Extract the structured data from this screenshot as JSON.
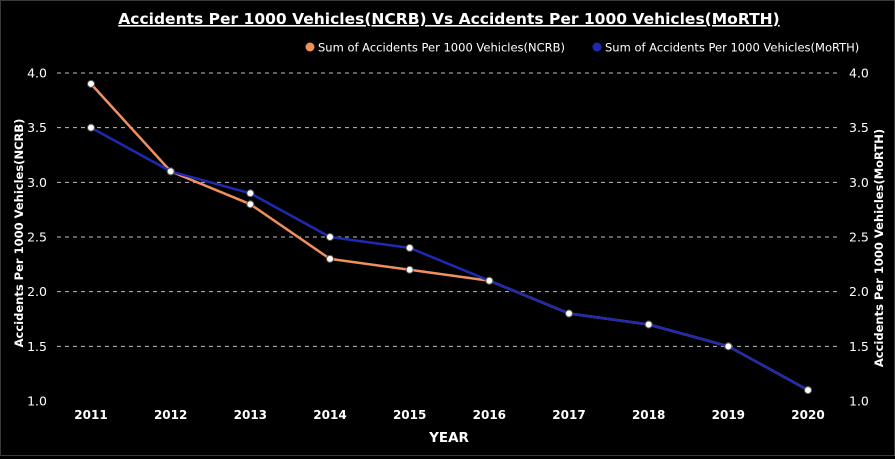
{
  "chart_data": {
    "type": "line",
    "title": "Accidents Per 1000 Vehicles(NCRB) Vs Accidents Per 1000 Vehicles(MoRTH)",
    "xlabel": "YEAR",
    "ylabel_left": "Accidents Per 1000 Vehicles(NCRB)",
    "ylabel_right": "Accidents Per 1000 Vehicles(MoRTH)",
    "categories": [
      "2011",
      "2012",
      "2013",
      "2014",
      "2015",
      "2016",
      "2017",
      "2018",
      "2019",
      "2020"
    ],
    "ylim": [
      1.0,
      4.0
    ],
    "yticks": [
      "1.0",
      "1.5",
      "2.0",
      "2.5",
      "3.0",
      "3.5",
      "4.0"
    ],
    "grid": true,
    "legend_position": "top-right",
    "series": [
      {
        "name": "Sum of Accidents Per 1000 Vehicles(NCRB)",
        "color": "#f0905f",
        "values": [
          3.9,
          3.1,
          2.8,
          2.3,
          2.2,
          2.1,
          1.8,
          1.7,
          1.5,
          1.1
        ]
      },
      {
        "name": "Sum of Accidents Per 1000 Vehicles(MoRTH)",
        "color": "#1f2ab3",
        "values": [
          3.5,
          3.1,
          2.9,
          2.5,
          2.4,
          2.1,
          1.8,
          1.7,
          1.5,
          1.1
        ]
      }
    ]
  },
  "colors": {
    "background": "#000000",
    "text": "#ffffff",
    "grid": "#bfbfbf",
    "marker_fill": "#ffffff"
  }
}
